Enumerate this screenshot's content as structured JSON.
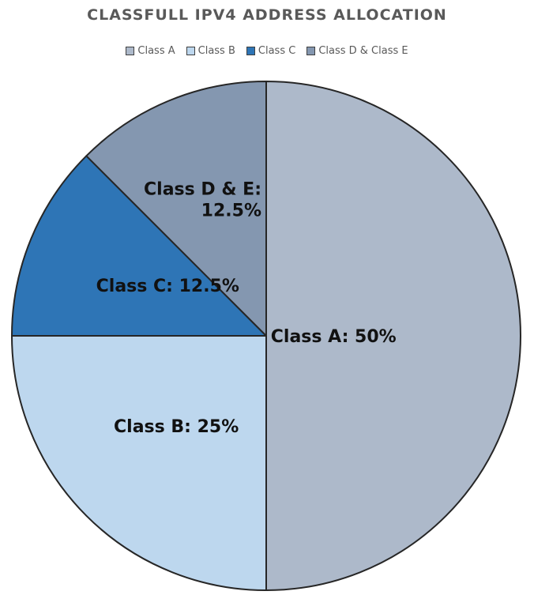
{
  "chart_data": {
    "type": "pie",
    "title": "CLASSFULL IPV4 ADDRESS ALLOCATION",
    "legend_position": "top",
    "slices": [
      {
        "name": "Class A",
        "value": 50,
        "color": "#adb9ca",
        "label_lines": [
          "Class A: 50%"
        ]
      },
      {
        "name": "Class B",
        "value": 25,
        "color": "#bdd7ee",
        "label_lines": [
          "Class B: 25%"
        ]
      },
      {
        "name": "Class C",
        "value": 12.5,
        "color": "#2e75b6",
        "label_lines": [
          "Class C: 12.5%"
        ]
      },
      {
        "name": "Class D & Class E",
        "value": 12.5,
        "color": "#8497b0",
        "label_lines": [
          "Class D & E:",
          "12.5%"
        ]
      }
    ]
  }
}
